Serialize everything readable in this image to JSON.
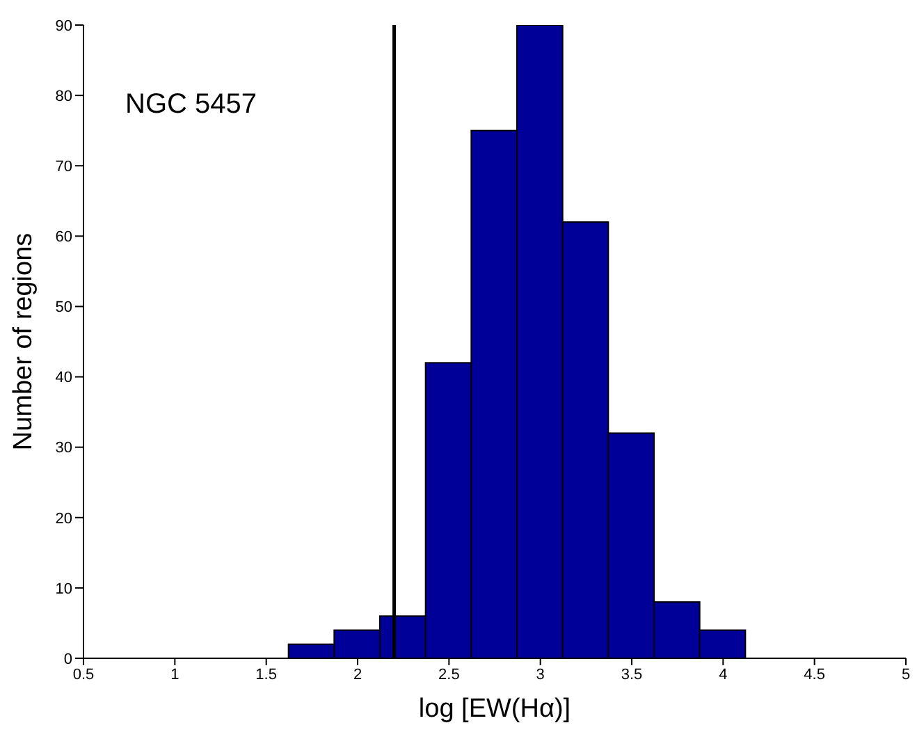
{
  "chart_data": {
    "type": "histogram",
    "xlabel": "log [EW(Hα)]",
    "ylabel": "Number of regions",
    "annotations": [
      "NGC 5457"
    ],
    "bins": [
      0.875,
      1.125,
      1.375,
      1.625,
      1.875,
      2.125,
      2.375,
      2.625,
      2.875,
      3.125,
      3.375,
      3.625,
      3.875,
      4.125,
      4.375,
      4.625
    ],
    "values": [
      0,
      0,
      0,
      2,
      4,
      6,
      42,
      75,
      90,
      62,
      32,
      8,
      4,
      0,
      0
    ],
    "color": "#000099",
    "xlim": [
      0.5,
      5
    ],
    "xticks": [
      0.5,
      1,
      1.5,
      2,
      2.5,
      3,
      3.5,
      4,
      4.5,
      5
    ],
    "ylim": [
      0,
      90
    ],
    "yticks": [
      0,
      10,
      20,
      30,
      40,
      50,
      60,
      70,
      80,
      90
    ],
    "ref_lines": [
      {
        "axis": "x",
        "value": 2.2,
        "color": "#000000"
      }
    ],
    "grid": false,
    "legend": false
  }
}
